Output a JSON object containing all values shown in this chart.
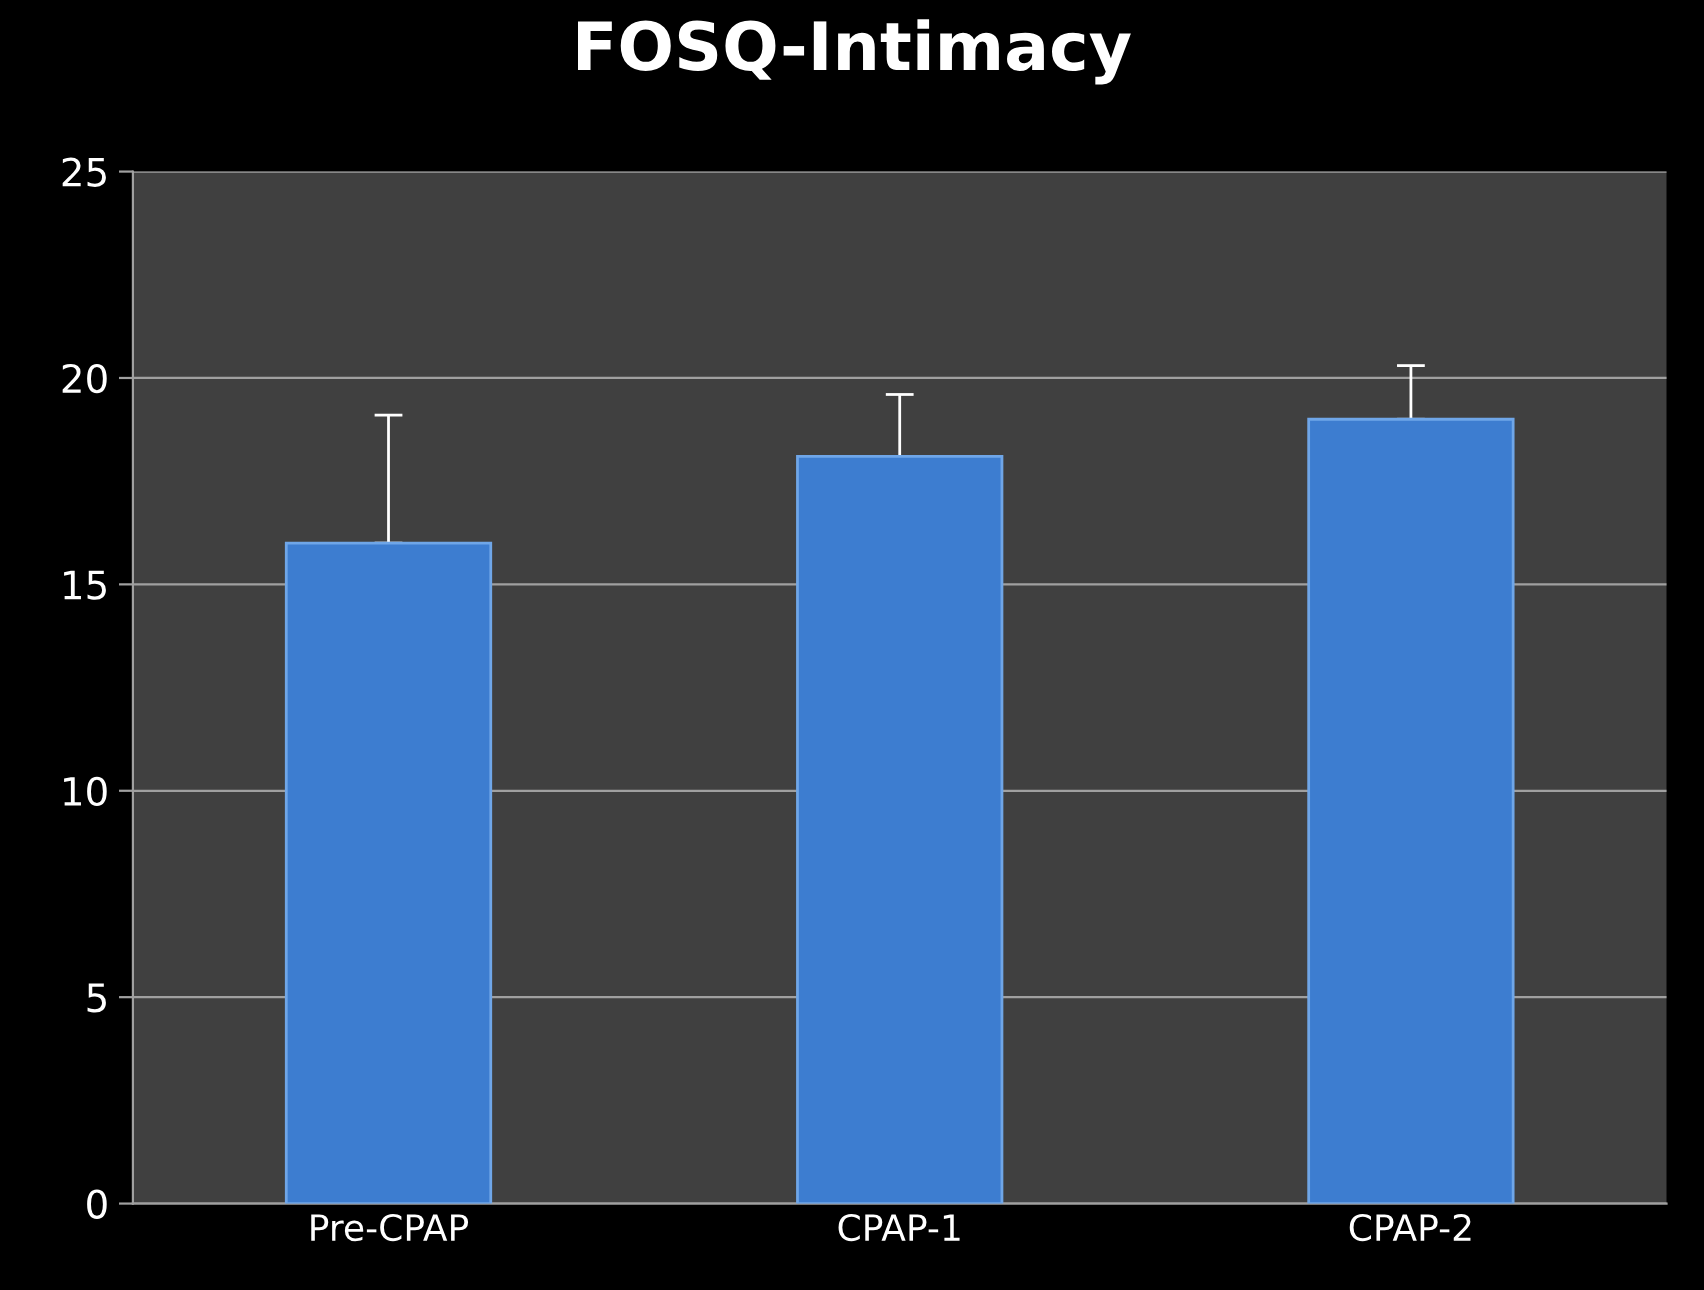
{
  "chart_data": {
    "type": "bar",
    "title": "FOSQ-Intimacy",
    "categories": [
      "Pre-CPAP",
      "CPAP-1",
      "CPAP-2"
    ],
    "values": [
      16.0,
      18.1,
      19.0
    ],
    "errors": [
      [
        16.0,
        19.1
      ],
      [
        18.1,
        19.6
      ],
      [
        19.0,
        20.3
      ]
    ],
    "color": "#3d7dd0",
    "ylim": [
      0,
      25
    ],
    "yticks": [
      0,
      5,
      10,
      15,
      20,
      25
    ],
    "grid": "y"
  }
}
